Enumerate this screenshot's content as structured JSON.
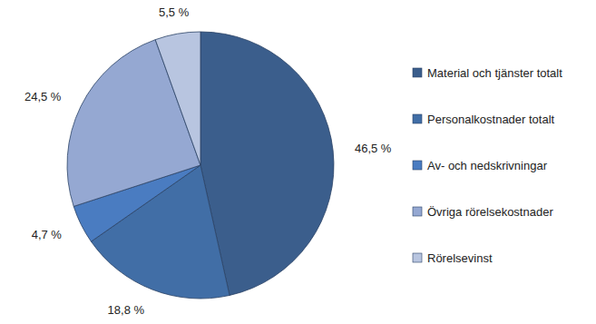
{
  "chart_data": {
    "type": "pie",
    "categories": [
      "Material och tjänster totalt",
      "Personalkostnader totalt",
      "Av- och nedskrivningar",
      "Övriga rörelsekostnader",
      "Rörelsevinst"
    ],
    "values": [
      46.5,
      18.8,
      4.7,
      24.5,
      5.5
    ],
    "value_labels": [
      "46,5 %",
      "18,8 %",
      "4,7 %",
      "24,5 %",
      "5,5 %"
    ],
    "colors": [
      "#3b5e8c",
      "#416ea6",
      "#4a7cc1",
      "#95a8d2",
      "#b8c5e0"
    ],
    "data_labels": true,
    "legend": "right"
  }
}
